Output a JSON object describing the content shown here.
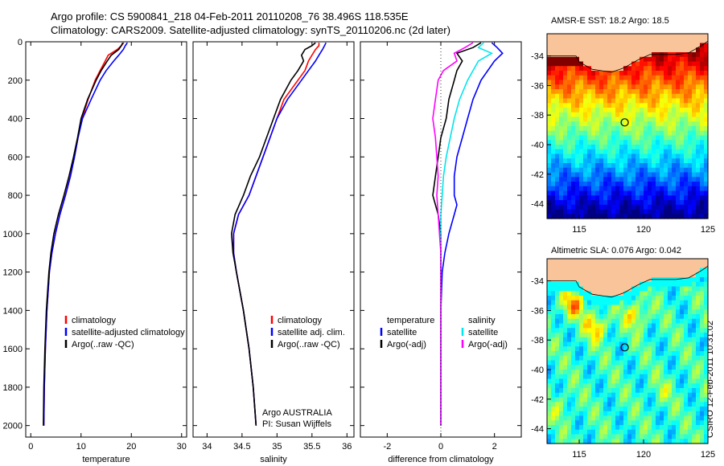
{
  "header": {
    "title_line1": "Argo profile: CS 5900841_218 04-Feb-2011 20110208_76 38.496S 118.535E",
    "title_line2": "Climatology: CARS2009. Satellite-adjusted climatology: synTS_20110206.nc (2d later)"
  },
  "colors": {
    "climatology": "#ff0000",
    "satellite": "#0000ff",
    "argo": "#000000",
    "sat_sal": "#00e5ee",
    "argo_adj_sal": "#ff00ff"
  },
  "chart_data": [
    {
      "type": "line",
      "name": "temperature-profile",
      "xlabel": "temperature",
      "ylabel": "",
      "xlim": [
        -1,
        31
      ],
      "ylim": [
        0,
        2060
      ],
      "y_inverted": true,
      "xticks": [
        "0",
        "10",
        "20",
        "30"
      ],
      "yticks": [
        "0",
        "200",
        "400",
        "600",
        "800",
        "1000",
        "1200",
        "1400",
        "1600",
        "1800",
        "2000"
      ],
      "legend": [
        "climatology",
        "satellite-adjusted climatology",
        "Argo(..raw -QC)"
      ],
      "series": [
        {
          "name": "climatology",
          "y": [
            5,
            20,
            40,
            70,
            100,
            150,
            200,
            300,
            400,
            500,
            600,
            700,
            800,
            900,
            1000,
            1100,
            1200,
            1400,
            1600,
            1800,
            2000
          ],
          "values": [
            18.5,
            18.0,
            17.2,
            15.4,
            14.8,
            13.8,
            12.8,
            11.4,
            10.2,
            9.4,
            8.7,
            7.9,
            6.9,
            5.8,
            4.9,
            4.2,
            3.7,
            3.2,
            2.9,
            2.7,
            2.6
          ]
        },
        {
          "name": "satellite-adjusted climatology",
          "y": [
            5,
            20,
            40,
            70,
            100,
            150,
            200,
            300,
            400,
            500,
            600,
            700,
            800,
            900,
            1000,
            1100,
            1200,
            1400,
            1600,
            1800,
            2000
          ],
          "values": [
            19.2,
            18.8,
            18.4,
            17.5,
            16.5,
            15.0,
            13.8,
            12.0,
            10.3,
            9.4,
            8.7,
            7.9,
            6.9,
            5.8,
            4.9,
            4.2,
            3.7,
            3.2,
            2.9,
            2.7,
            2.6
          ]
        },
        {
          "name": "Argo(..raw -QC)",
          "y": [
            5,
            20,
            40,
            70,
            100,
            150,
            200,
            300,
            400,
            500,
            600,
            700,
            800,
            900,
            1000,
            1100,
            1200,
            1400,
            1600,
            1800,
            2000
          ],
          "values": [
            18.3,
            18.0,
            17.5,
            16.0,
            15.2,
            14.0,
            13.0,
            11.3,
            10.0,
            9.3,
            8.5,
            7.6,
            6.6,
            5.5,
            4.6,
            4.0,
            3.6,
            3.1,
            2.8,
            2.6,
            2.5
          ]
        }
      ]
    },
    {
      "type": "line",
      "name": "salinity-profile",
      "xlabel": "salinity",
      "xlim": [
        33.8,
        36.1
      ],
      "ylim": [
        0,
        2060
      ],
      "y_inverted": true,
      "xticks": [
        "34",
        "34.5",
        "35",
        "35.5",
        "36"
      ],
      "legend": [
        "climatology",
        "satellite adj. clim.",
        "Argo(..raw -QC)"
      ],
      "annotation": [
        "Argo AUSTRALIA",
        "PI: Susan Wijffels"
      ],
      "series": [
        {
          "name": "climatology",
          "y": [
            5,
            20,
            40,
            70,
            100,
            150,
            200,
            300,
            400,
            500,
            600,
            700,
            800,
            900,
            1000,
            1100,
            1200,
            1400,
            1600,
            1800,
            2000
          ],
          "values": [
            35.6,
            35.6,
            35.55,
            35.5,
            35.45,
            35.4,
            35.3,
            35.1,
            35.0,
            34.9,
            34.8,
            34.7,
            34.6,
            34.45,
            34.38,
            34.38,
            34.42,
            34.52,
            34.6,
            34.66,
            34.7
          ]
        },
        {
          "name": "satellite adj. clim.",
          "y": [
            5,
            20,
            40,
            70,
            100,
            150,
            200,
            300,
            400,
            500,
            600,
            700,
            800,
            900,
            1000,
            1100,
            1200,
            1400,
            1600,
            1800,
            2000
          ],
          "values": [
            35.7,
            35.68,
            35.65,
            35.6,
            35.55,
            35.45,
            35.35,
            35.15,
            35.0,
            34.9,
            34.8,
            34.7,
            34.6,
            34.45,
            34.38,
            34.38,
            34.42,
            34.52,
            34.6,
            34.66,
            34.7
          ]
        },
        {
          "name": "Argo(..raw -QC)",
          "y": [
            5,
            20,
            40,
            70,
            100,
            150,
            200,
            300,
            400,
            500,
            600,
            700,
            800,
            900,
            1000,
            1100,
            1200,
            1400,
            1600,
            1800,
            2000
          ],
          "values": [
            35.55,
            35.5,
            35.4,
            35.35,
            35.38,
            35.3,
            35.2,
            35.05,
            34.95,
            34.85,
            34.75,
            34.62,
            34.52,
            34.4,
            34.35,
            34.37,
            34.42,
            34.52,
            34.6,
            34.66,
            34.7
          ]
        }
      ]
    },
    {
      "type": "line",
      "name": "difference-from-climatology",
      "xlabel": "difference from climatology",
      "xlim": [
        -3,
        3
      ],
      "ylim": [
        0,
        2060
      ],
      "y_inverted": true,
      "xticks": [
        "-2",
        "0",
        "2"
      ],
      "legend_temperature": {
        "heading": "temperature",
        "items": [
          "satellite",
          "Argo(-adj)"
        ]
      },
      "legend_salinity": {
        "heading": "salinity",
        "items": [
          "satellite",
          "Argo(-adj)"
        ]
      },
      "series": [
        {
          "name": "temperature satellite",
          "y": [
            5,
            30,
            60,
            100,
            200,
            300,
            400,
            500,
            600,
            700,
            800,
            850,
            900,
            1000,
            1100,
            1200,
            1400,
            2000
          ],
          "values": [
            1.9,
            2.1,
            2.3,
            2.0,
            1.5,
            1.2,
            1.0,
            0.8,
            0.6,
            0.5,
            0.5,
            0.6,
            0.5,
            0.3,
            0.15,
            0.05,
            0.0,
            0.0
          ]
        },
        {
          "name": "temperature Argo(-adj)",
          "y": [
            5,
            30,
            60,
            100,
            150,
            200,
            300,
            400,
            500,
            600,
            700,
            800,
            900,
            1000,
            1100,
            1200,
            1400,
            2000
          ],
          "values": [
            1.5,
            1.2,
            0.6,
            0.8,
            0.6,
            0.5,
            0.3,
            0.2,
            0.0,
            -0.1,
            -0.2,
            -0.3,
            -0.1,
            0.0,
            0.0,
            0.0,
            0.0,
            0.0
          ]
        },
        {
          "name": "salinity satellite",
          "y": [
            5,
            30,
            60,
            100,
            200,
            300,
            400,
            500,
            600,
            700,
            800,
            900,
            1000,
            1200,
            1400,
            2000
          ],
          "values": [
            1.6,
            1.4,
            1.9,
            1.4,
            1.0,
            0.7,
            0.5,
            0.35,
            0.2,
            0.1,
            0.05,
            0.0,
            0.0,
            0.0,
            0.0,
            0.0
          ]
        },
        {
          "name": "salinity Argo(-adj)",
          "y": [
            5,
            30,
            60,
            100,
            150,
            200,
            300,
            400,
            500,
            600,
            700,
            800,
            900,
            1000,
            1100,
            1200,
            1400,
            2000
          ],
          "values": [
            1.2,
            0.9,
            0.5,
            0.6,
            0.1,
            -0.1,
            -0.2,
            -0.3,
            -0.2,
            -0.15,
            -0.1,
            -0.15,
            -0.1,
            -0.05,
            0.0,
            0.0,
            0.0,
            0.0
          ]
        }
      ]
    },
    {
      "type": "heatmap",
      "name": "amsr-e-sst-map",
      "title": "AMSR-E SST: 18.2 Argo: 18.5",
      "xlim": [
        112.5,
        125
      ],
      "ylim": [
        -45,
        -32.5
      ],
      "xticks": [
        "115",
        "120",
        "125"
      ],
      "yticks": [
        "-34",
        "-36",
        "-38",
        "-40",
        "-42",
        "-44"
      ],
      "argo_location": {
        "lon": 118.535,
        "lat": -38.496
      }
    },
    {
      "type": "heatmap",
      "name": "altimetric-sla-map",
      "title": "Altimetric SLA: 0.076 Argo: 0.042",
      "xlim": [
        112.5,
        125
      ],
      "ylim": [
        -45,
        -32.5
      ],
      "xticks": [
        "115",
        "120",
        "125"
      ],
      "yticks": [
        "-34",
        "-36",
        "-38",
        "-40",
        "-42",
        "-44"
      ],
      "argo_location": {
        "lon": 118.535,
        "lat": -38.496
      }
    }
  ],
  "footer": {
    "stamp": "CSIRO 12-Feb-2011 10:31:02"
  }
}
